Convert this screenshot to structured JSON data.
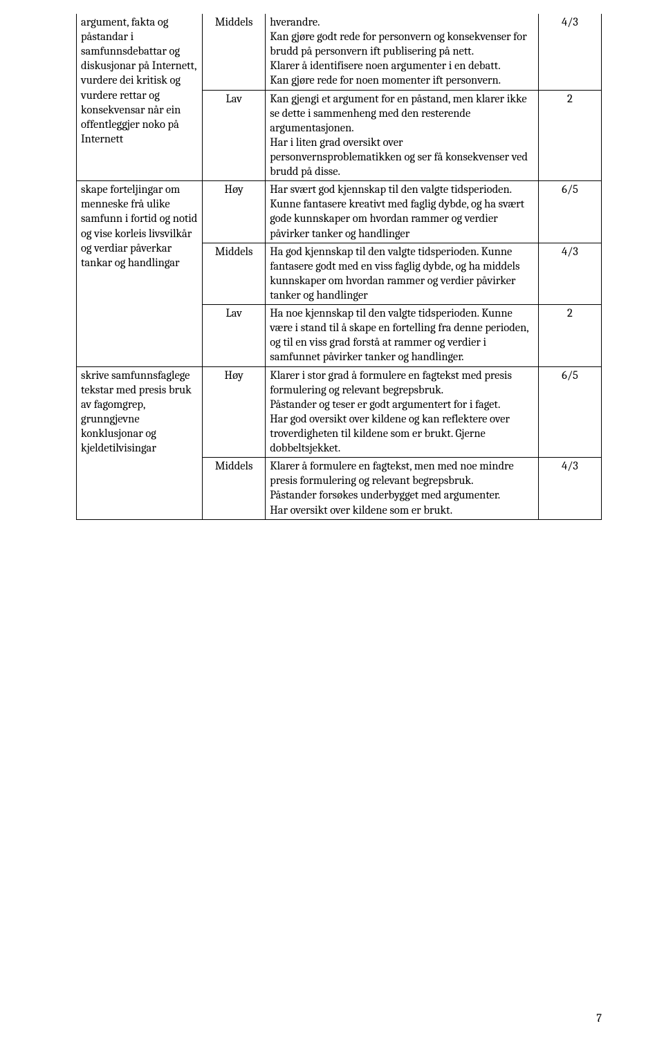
{
  "rows": [
    {
      "goal": "argument, fakta og påstandar i samfunnsdebattar og diskusjonar på Internett, vurdere dei kritisk og vurdere rettar og konsekvensar når ein offentleggjer noko på Internett",
      "goal_rowspan": 2,
      "goal_openTop": true,
      "levels": [
        {
          "label": "Middels",
          "openTop": true,
          "desc": "hverandre.\nKan gjøre godt rede for personvern og konsekvenser for brudd på personvern ift publisering på nett.\nKlarer å identifisere noen argumenter i en debatt.\nKan gjøre rede for noen momenter ift personvern.",
          "grade": "4/3",
          "grade_openTop": true
        },
        {
          "label": "Lav",
          "desc": "Kan gjengi et argument for en påstand, men klarer ikke se dette i sammenheng med den resterende argumentasjonen.\nHar i liten grad oversikt over personvernsproblematikken og ser få konsekvenser ved brudd på disse.",
          "grade": "2"
        }
      ]
    },
    {
      "goal": "skape forteljingar om menneske frå ulike samfunn i fortid og notid og vise korleis livsvilkår og verdiar påverkar tankar og handlingar",
      "goal_rowspan": 3,
      "levels": [
        {
          "label": "Høy",
          "desc": "Har svært god kjennskap til den valgte tidsperioden. Kunne fantasere kreativt med faglig dybde, og ha svært gode kunnskaper om hvordan rammer og verdier påvirker tanker og handlinger",
          "grade": "6/5"
        },
        {
          "label": "Middels",
          "desc": "Ha god kjennskap til den valgte tidsperioden. Kunne fantasere godt med en viss faglig dybde, og ha middels kunnskaper om hvordan rammer og verdier påvirker tanker og handlinger",
          "grade": "4/3"
        },
        {
          "label": "Lav",
          "desc": "Ha noe kjennskap til den valgte tidsperioden. Kunne være i stand til å skape en fortelling fra denne perioden, og til en viss grad forstå at rammer og verdier i samfunnet påvirker tanker og handlinger.",
          "grade": "2"
        }
      ]
    },
    {
      "goal": "skrive samfunnsfaglege tekstar med presis bruk av fagomgrep, grunngjevne konklusjonar og kjeldetilvisingar",
      "goal_rowspan": 2,
      "levels": [
        {
          "label": "Høy",
          "desc": "Klarer i stor grad å formulere en fagtekst med presis formulering og relevant begrepsbruk.\nPåstander og teser er godt argumentert for i faget.\nHar god oversikt over kildene og kan reflektere over troverdigheten til kildene som er brukt. Gjerne dobbeltsjekket.",
          "grade": "6/5"
        },
        {
          "label": "Middels",
          "desc": "Klarer å formulere en fagtekst, men med noe mindre presis formulering og relevant begrepsbruk.\nPåstander forsøkes underbygget med argumenter.\nHar oversikt over kildene som er brukt.",
          "grade": "4/3"
        }
      ]
    }
  ],
  "pageNumber": "7"
}
